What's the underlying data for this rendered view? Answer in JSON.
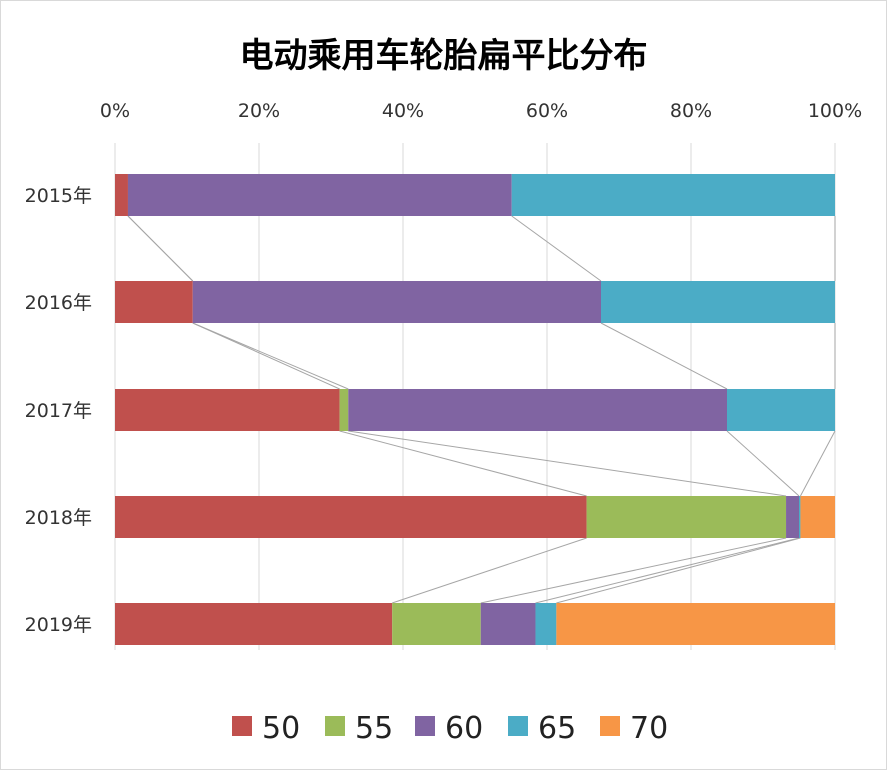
{
  "chart_data": {
    "type": "bar",
    "orientation": "horizontal",
    "stacked": "percent",
    "title": "电动乘用车轮胎扁平比分布",
    "categories": [
      "2015年",
      "2016年",
      "2017年",
      "2018年",
      "2019年"
    ],
    "x_ticks": [
      "0%",
      "20%",
      "40%",
      "60%",
      "80%",
      "100%"
    ],
    "xlim": [
      0,
      100
    ],
    "grid": true,
    "legend_position": "bottom",
    "series": [
      {
        "name": "50",
        "color": "#c0504d",
        "values": [
          1.8,
          10.8,
          31.2,
          65.5,
          38.5
        ]
      },
      {
        "name": "55",
        "color": "#9bbb59",
        "values": [
          0,
          0,
          1.2,
          27.7,
          12.3
        ]
      },
      {
        "name": "60",
        "color": "#8064a2",
        "values": [
          53.3,
          56.7,
          52.6,
          1.8,
          7.6
        ]
      },
      {
        "name": "65",
        "color": "#4bacc6",
        "values": [
          44.9,
          32.5,
          15.0,
          0.2,
          2.9
        ]
      },
      {
        "name": "70",
        "color": "#f79646",
        "values": [
          0,
          0,
          0,
          4.8,
          38.7
        ]
      }
    ]
  }
}
